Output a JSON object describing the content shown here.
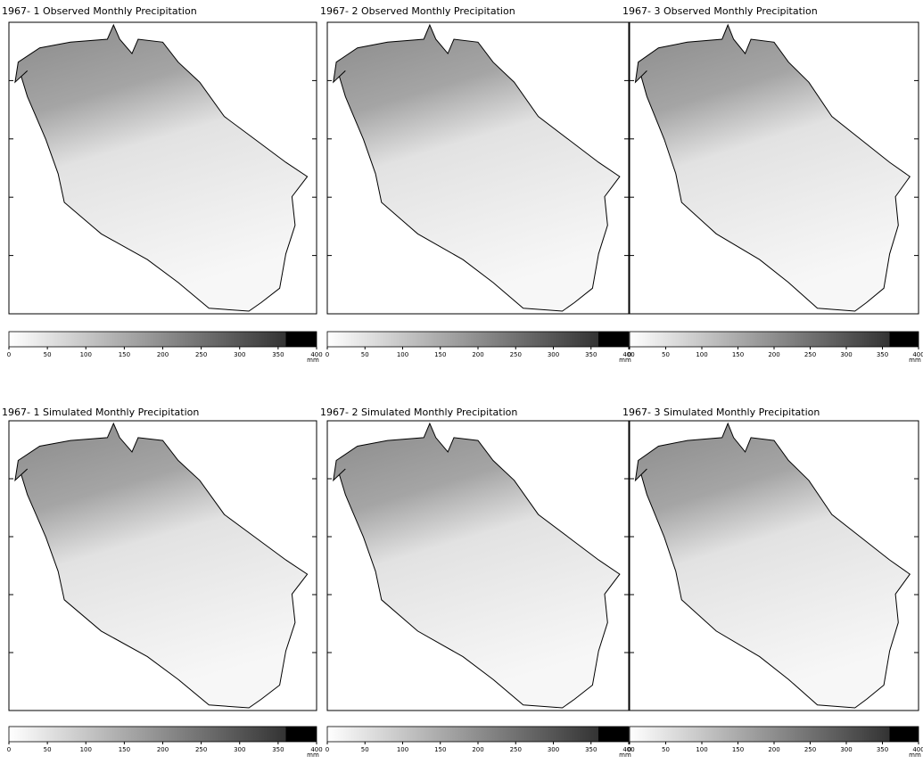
{
  "panels": [
    {
      "title": "1967- 1 Observed Monthly Precipitation",
      "colorbar": {
        "ticks": [
          0,
          50,
          100,
          150,
          200,
          250,
          300,
          350,
          400
        ],
        "unit": "mm"
      }
    },
    {
      "title": "1967- 2 Observed Monthly Precipitation",
      "colorbar": {
        "ticks": [
          0,
          50,
          100,
          150,
          200,
          250,
          300,
          350,
          400
        ],
        "unit": "mm"
      }
    },
    {
      "title": "1967- 3 Observed Monthly Precipitation",
      "colorbar": {
        "ticks": [
          0,
          50,
          100,
          150,
          200,
          250,
          300,
          350,
          400
        ],
        "unit": "mm"
      }
    },
    {
      "title": "1967- 1 Simulated Monthly Precipitation",
      "colorbar": {
        "ticks": [
          0,
          50,
          100,
          150,
          200,
          250,
          300,
          350,
          400
        ],
        "unit": "mm"
      }
    },
    {
      "title": "1967- 2 Simulated Monthly Precipitation",
      "colorbar": {
        "ticks": [
          0,
          50,
          100,
          150,
          200,
          250,
          300,
          350,
          400
        ],
        "unit": "mm"
      }
    },
    {
      "title": "1967- 3 Simulated Monthly Precipitation",
      "colorbar": {
        "ticks": [
          0,
          50,
          100,
          150,
          200,
          250,
          300,
          350,
          400
        ],
        "unit": "mm"
      }
    }
  ]
}
